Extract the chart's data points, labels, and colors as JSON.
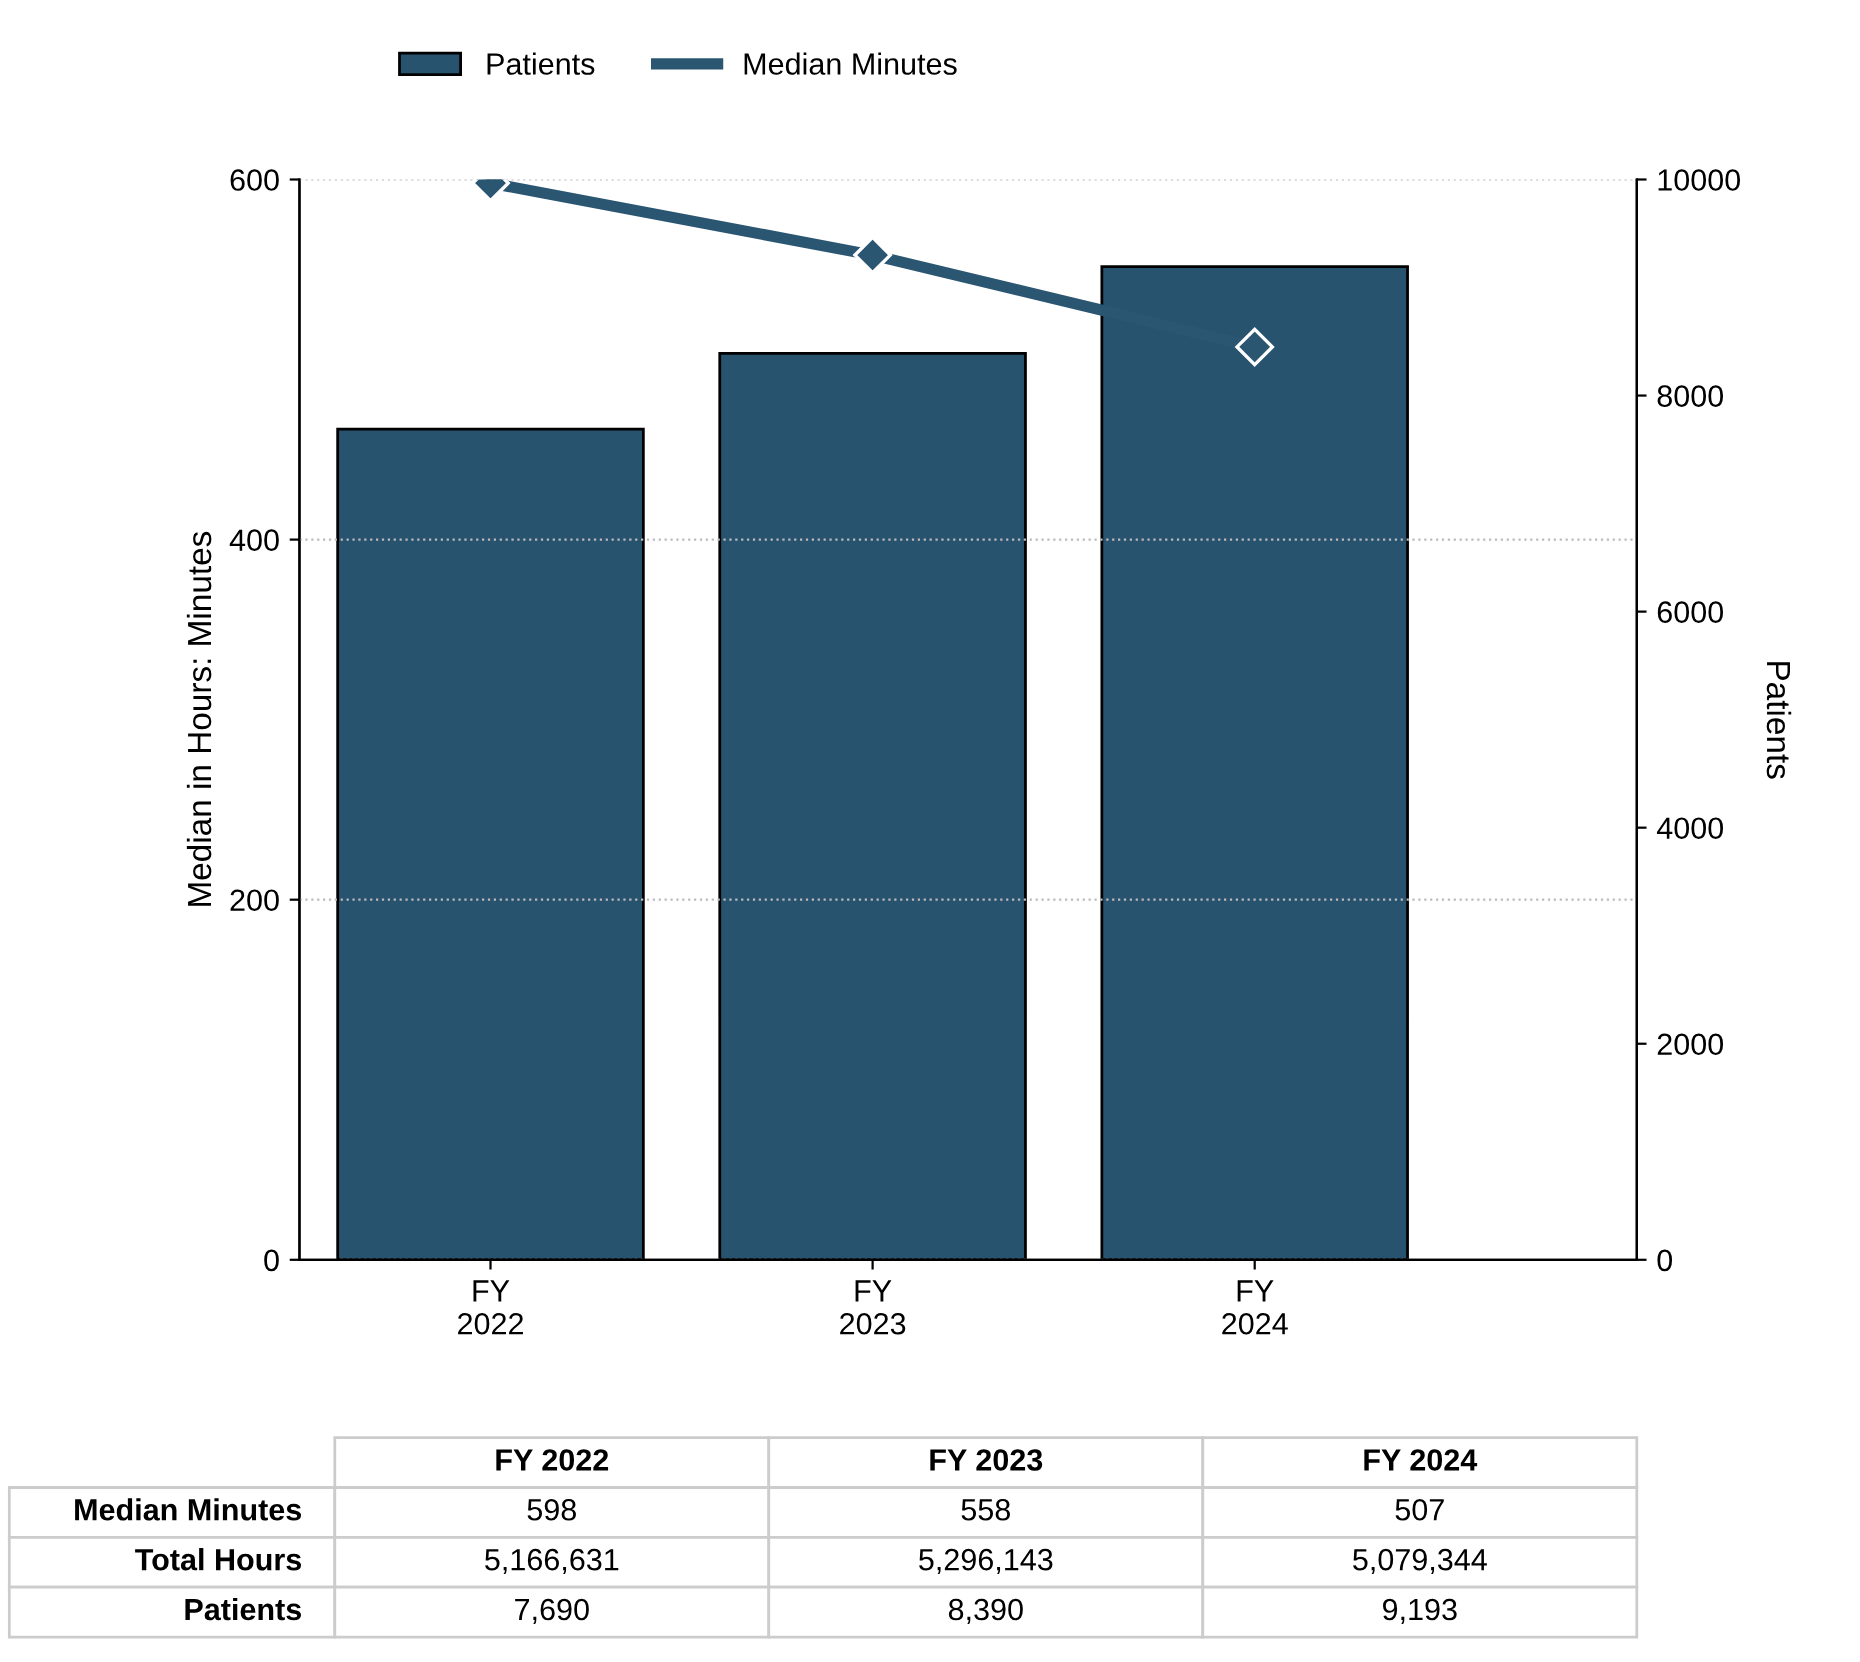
{
  "chart_data": {
    "type": "bar",
    "categories": [
      "FY 2022",
      "FY 2023",
      "FY 2024"
    ],
    "ylabel": "Median in Hours: Minutes",
    "y2label": "Patients",
    "series": [
      {
        "name": "Median Minutes",
        "type": "line",
        "axis": "y",
        "color": "#2b5672",
        "marker": "diamond",
        "values": [
          598,
          558,
          507
        ],
        "value_labels": [
          "598",
          "558",
          "507"
        ]
      },
      {
        "name": "Patients",
        "axis": "y2",
        "color": "#27536f",
        "values": [
          7690,
          8390,
          9193
        ],
        "value_labels": [
          "7,690",
          "8,390",
          "9,193"
        ]
      }
    ],
    "ylim": [
      0,
      600
    ],
    "yticks": [
      0,
      200,
      400,
      600
    ],
    "y2lim": [
      0,
      10000
    ],
    "y2ticks": [
      0,
      2000,
      4000,
      6000,
      8000,
      10000
    ],
    "annotations": [
      "Total Hours",
      "5,166,631",
      "5,296,143",
      "5,079,344"
    ],
    "grid": "y",
    "legend": "top left"
  }
}
